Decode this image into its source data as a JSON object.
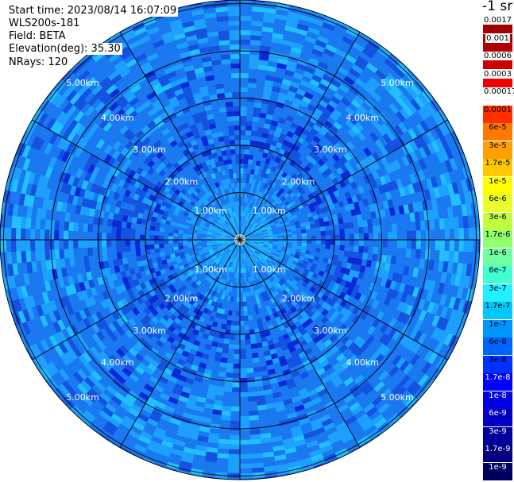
{
  "header": {
    "start_time": "Start time: 2023/08/14 16:07:09",
    "instrument": "WLS200s-181",
    "field": "Field: BETA",
    "elevation": "Elevation(deg): 35.30",
    "nrays": "NRays: 120"
  },
  "range_labels": [
    "1.00km",
    "2.00km",
    "3.00km",
    "4.00km",
    "5.00km"
  ],
  "colorbar": {
    "unit": "-1 sr",
    "labels": [
      "0.0017",
      "0.001",
      "0.0006",
      "0.0003",
      "0.00017",
      "0.0001",
      "6e-5",
      "3e-5",
      "1.7e-5",
      "1e-5",
      "6e-6",
      "3e-6",
      "1.7e-6",
      "1e-6",
      "6e-7",
      "3e-7",
      "1.7e-7",
      "1e-7",
      "6e-8",
      "3e-8",
      "1.7e-8",
      "1e-8",
      "6e-9",
      "3e-9",
      "1.7e-9",
      "1e-9"
    ],
    "colors": [
      "#a00000",
      "#b00000",
      "#d00000",
      "#f00000",
      "#ffffff",
      "#ff3000",
      "#ff7800",
      "#ffa000",
      "#ffc800",
      "#ffff00",
      "#e6ff2a",
      "#c0ff40",
      "#90ff70",
      "#70ffa0",
      "#40ffd0",
      "#20f0ff",
      "#00c8ff",
      "#0096ff",
      "#0064ff",
      "#0032ff",
      "#0000ff",
      "#0000e0",
      "#0000c0",
      "#00009c",
      "#000080",
      "#000060"
    ],
    "text_colors": [
      "#000000",
      "#000000",
      "#000000",
      "#000000",
      "#000000",
      "#000000",
      "#000000",
      "#000000",
      "#000000",
      "#000000",
      "#000000",
      "#000000",
      "#000000",
      "#000000",
      "#000000",
      "#000000",
      "#000000",
      "#000000",
      "#000000",
      "#000000",
      "#ffffff",
      "#ffffff",
      "#ffffff",
      "#ffffff",
      "#ffffff",
      "#ffffff"
    ]
  },
  "palette": {
    "dominant": "#1a78f0",
    "light": "#1ea0ff",
    "cyan": "#22c0ff",
    "dark": "#1452e0",
    "deep": "#0a28d8",
    "grid": "#000000"
  }
}
